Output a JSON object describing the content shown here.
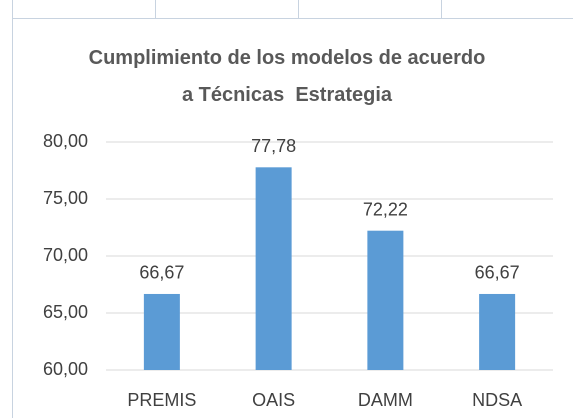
{
  "chart_data": {
    "type": "bar",
    "title": "Cumplimiento de los modelos de acuerdo a Técnicas  Estrategia",
    "categories": [
      "PREMIS",
      "OAIS",
      "DAMM",
      "NDSA"
    ],
    "values": [
      66.67,
      77.78,
      72.22,
      66.67
    ],
    "value_labels": [
      "66,67",
      "77,78",
      "72,22",
      "66,67"
    ],
    "color": "#5b9bd5",
    "ylim": [
      60,
      80
    ],
    "yticks": [
      {
        "value": 60,
        "label": "60,00"
      },
      {
        "value": 65,
        "label": "65,00"
      },
      {
        "value": 70,
        "label": "70,00"
      },
      {
        "value": 75,
        "label": "75,00"
      },
      {
        "value": 80,
        "label": "80,00"
      }
    ],
    "grid": true
  }
}
